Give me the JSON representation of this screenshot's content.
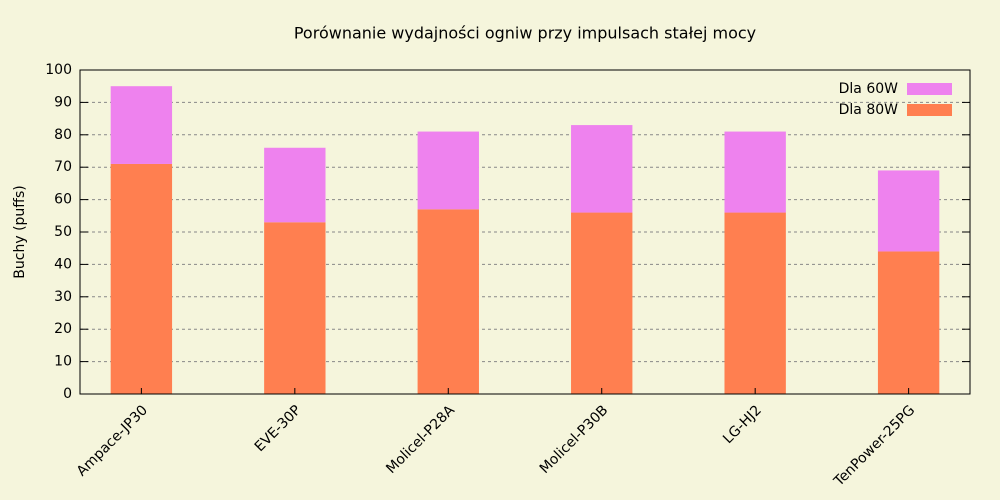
{
  "chart_data": {
    "type": "stacked_bar",
    "title": "Porównanie wydajności ogniw przy impulsach stałej mocy",
    "ylabel": "Buchy (puffs)",
    "categories": [
      "Ampace-JP30",
      "EVE-30P",
      "Molicel-P28A",
      "Molicel-P30B",
      "LG-HJ2",
      "TenPower-25PG"
    ],
    "series": [
      {
        "name": "Dla 60W",
        "color": "#ee82ee",
        "values": [
          24,
          23,
          24,
          27,
          25,
          25
        ]
      },
      {
        "name": "Dla 80W",
        "color": "#ff7f50",
        "values": [
          71,
          53,
          57,
          56,
          56,
          44
        ]
      }
    ],
    "ylim": [
      0,
      100
    ],
    "yticks": [
      0,
      10,
      20,
      30,
      40,
      50,
      60,
      70,
      80,
      90,
      100
    ],
    "grid": true,
    "legend": "top-right"
  }
}
